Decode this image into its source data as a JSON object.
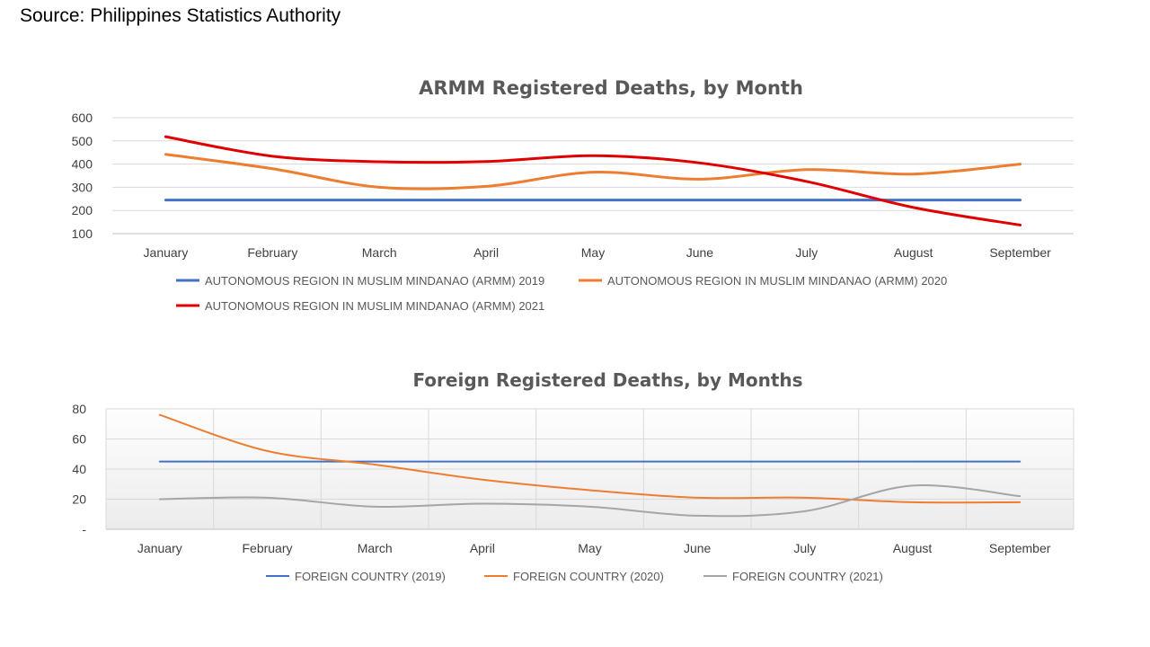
{
  "source": "Source:  Philippines Statistics Authority",
  "colors": {
    "armm_2019": "#4472c4",
    "armm_2020": "#ed7d31",
    "armm_2021": "#e00000",
    "foreign_2019": "#4472c4",
    "foreign_2020": "#ed7d31",
    "foreign_2021": "#a5a5a5"
  },
  "chart_data": [
    {
      "type": "line",
      "title": "ARMM Registered Deaths, by Month",
      "categories": [
        "January",
        "February",
        "March",
        "April",
        "May",
        "June",
        "July",
        "August",
        "September"
      ],
      "ylim": [
        100,
        600
      ],
      "yticks": [
        100,
        200,
        300,
        400,
        500,
        600
      ],
      "ytick_labels": [
        "100",
        "200",
        "300",
        "400",
        "500",
        "600"
      ],
      "grid": true,
      "legend_position": "bottom",
      "series": [
        {
          "name": "AUTONOMOUS REGION IN MUSLIM MINDANAO (ARMM) 2019",
          "color": "#4472c4",
          "values": [
            245,
            245,
            245,
            245,
            245,
            245,
            245,
            245,
            245
          ]
        },
        {
          "name": "AUTONOMOUS REGION IN MUSLIM MINDANAO (ARMM) 2020",
          "color": "#ed7d31",
          "values": [
            442,
            380,
            300,
            304,
            365,
            335,
            376,
            357,
            400
          ]
        },
        {
          "name": "AUTONOMOUS REGION IN MUSLIM MINDANAO (ARMM) 2021",
          "color": "#e00000",
          "values": [
            518,
            434,
            410,
            411,
            436,
            405,
            325,
            213,
            137
          ]
        }
      ]
    },
    {
      "type": "line",
      "title": "Foreign Registered Deaths, by Months",
      "categories": [
        "January",
        "February",
        "March",
        "April",
        "May",
        "June",
        "July",
        "August",
        "September"
      ],
      "ylim": [
        0,
        80
      ],
      "yticks": [
        0,
        20,
        40,
        60,
        80
      ],
      "ytick_labels": [
        "-",
        "20",
        "40",
        "60",
        "80"
      ],
      "grid": true,
      "legend_position": "bottom",
      "series": [
        {
          "name": "FOREIGN COUNTRY (2019)",
          "color": "#4472c4",
          "values": [
            45,
            45,
            45,
            45,
            45,
            45,
            45,
            45,
            45
          ]
        },
        {
          "name": "FOREIGN COUNTRY (2020)",
          "color": "#ed7d31",
          "values": [
            76,
            52,
            43,
            33,
            26,
            21,
            21,
            18,
            18
          ]
        },
        {
          "name": "FOREIGN COUNTRY (2021)",
          "color": "#a5a5a5",
          "values": [
            20,
            21,
            15,
            17,
            15,
            9,
            12,
            29,
            22
          ]
        }
      ]
    }
  ]
}
